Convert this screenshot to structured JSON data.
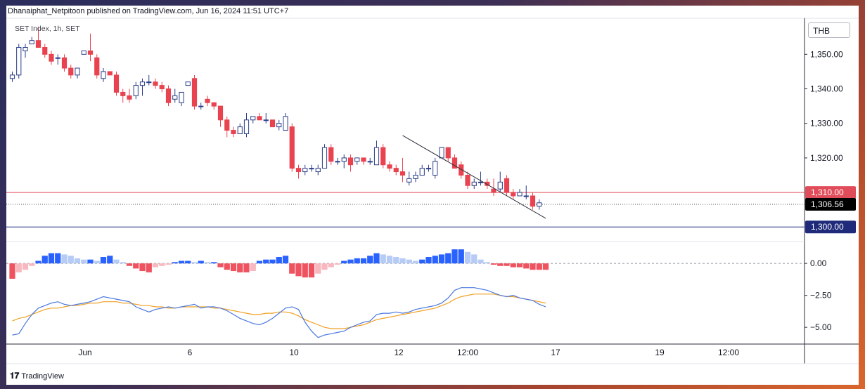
{
  "header": {
    "published_line": "Dhanaiphat_Netpitoon published on TradingView.com, Jun 16, 2024 11:51 UTC+7",
    "symbol_line": "SET Index, 1h, SET",
    "currency": "THB"
  },
  "footer": {
    "logo_glyph": "𝟏𝟕",
    "brand": "TradingView"
  },
  "colors": {
    "up": "#ffffff",
    "up_border": "#2a3d88",
    "down": "#e8434f",
    "down_border": "#e8434f",
    "line_red": "#e04c5a",
    "line_navy": "#1f2a7a",
    "macd": "#4a78e0",
    "signal": "#f0a024",
    "hist_up_strong": "#2962ff",
    "hist_up_weak": "#b6cbf5",
    "hist_down_strong": "#ef5360",
    "hist_down_weak": "#f7b9bf"
  },
  "chart_data": [
    {
      "type": "candlestick",
      "y_axis": {
        "ticks": [
          1350,
          1340,
          1330,
          1320
        ],
        "tick_labels": [
          "1,350.00",
          "1,340.00",
          "1,330.00",
          "1,320.00"
        ],
        "range": [
          1297,
          1358
        ]
      },
      "x_axis": {
        "ticks": [
          "Jun",
          "6",
          "10",
          "12",
          "12:00",
          "17",
          "19",
          "12:00"
        ]
      },
      "price_tags": [
        {
          "value": 1310.0,
          "label": "1,310.00",
          "color": "#e04c5a"
        },
        {
          "value": 1306.56,
          "label": "1,306.56",
          "color": "#000000"
        },
        {
          "value": 1300.0,
          "label": "1,300.00",
          "color": "#1f2a7a"
        }
      ],
      "horizontal_lines": [
        {
          "value": 1310.0,
          "style": "solid",
          "color": "#e04c5a"
        },
        {
          "value": 1306.56,
          "style": "dotted",
          "color": "#555555"
        },
        {
          "value": 1300.0,
          "style": "solid",
          "color": "#1f2a7a"
        }
      ],
      "trendline": {
        "from": {
          "bar": 60,
          "value": 1326.5
        },
        "to": {
          "bar": 82,
          "value": 1302.5
        }
      },
      "candles": [
        [
          1343,
          1345,
          1342,
          1344
        ],
        [
          1344,
          1353,
          1343,
          1352
        ],
        [
          1351,
          1353,
          1349,
          1352
        ],
        [
          1353,
          1355,
          1353,
          1354
        ],
        [
          1354,
          1358,
          1352,
          1352
        ],
        [
          1352,
          1353,
          1349,
          1350
        ],
        [
          1350,
          1351,
          1347,
          1348
        ],
        [
          1349,
          1350,
          1347,
          1349
        ],
        [
          1349,
          1350,
          1345,
          1346
        ],
        [
          1346,
          1347,
          1343,
          1344
        ],
        [
          1344,
          1346,
          1343,
          1346
        ],
        [
          1350,
          1351,
          1350,
          1351
        ],
        [
          1351,
          1356,
          1348,
          1350
        ],
        [
          1349,
          1350,
          1343,
          1344
        ],
        [
          1343,
          1346,
          1342,
          1345
        ],
        [
          1345,
          1345,
          1344,
          1344
        ],
        [
          1344,
          1345,
          1338,
          1339
        ],
        [
          1339,
          1340,
          1336,
          1338
        ],
        [
          1338,
          1340,
          1336,
          1337
        ],
        [
          1338,
          1342,
          1337,
          1341
        ],
        [
          1341,
          1343,
          1338,
          1342
        ],
        [
          1342,
          1344,
          1341,
          1342
        ],
        [
          1342,
          1343,
          1340,
          1341
        ],
        [
          1341,
          1342,
          1339,
          1340
        ],
        [
          1340,
          1341,
          1335,
          1336
        ],
        [
          1337,
          1340,
          1336,
          1338
        ],
        [
          1336,
          1339,
          1335,
          1339
        ],
        [
          1341,
          1342,
          1341,
          1342
        ],
        [
          1343,
          1344,
          1334,
          1335
        ],
        [
          1335,
          1336,
          1334,
          1335
        ],
        [
          1337,
          1338,
          1335,
          1336
        ],
        [
          1336,
          1336,
          1334,
          1335
        ],
        [
          1335,
          1335,
          1329,
          1331
        ],
        [
          1331,
          1332,
          1326,
          1328
        ],
        [
          1328,
          1329,
          1326,
          1327
        ],
        [
          1327,
          1330,
          1327,
          1329
        ],
        [
          1327,
          1333,
          1326,
          1331
        ],
        [
          1331,
          1332,
          1330,
          1332
        ],
        [
          1332,
          1333,
          1331,
          1331
        ],
        [
          1331,
          1333,
          1330,
          1331
        ],
        [
          1331,
          1331,
          1329,
          1329
        ],
        [
          1329,
          1331,
          1328,
          1330
        ],
        [
          1328,
          1333,
          1328,
          1332
        ],
        [
          1329,
          1330,
          1316,
          1317
        ],
        [
          1317,
          1318,
          1314,
          1316
        ],
        [
          1316,
          1318,
          1315,
          1317
        ],
        [
          1317,
          1318,
          1316,
          1317
        ],
        [
          1316,
          1318,
          1315,
          1317
        ],
        [
          1317,
          1324,
          1317,
          1323
        ],
        [
          1323,
          1324,
          1318,
          1319
        ],
        [
          1319,
          1320,
          1318,
          1319
        ],
        [
          1319,
          1321,
          1317,
          1320
        ],
        [
          1320,
          1321,
          1316,
          1318
        ],
        [
          1319,
          1320,
          1318,
          1320
        ],
        [
          1320,
          1320,
          1318,
          1319
        ],
        [
          1319,
          1320,
          1318,
          1319
        ],
        [
          1318,
          1325,
          1318,
          1323
        ],
        [
          1323,
          1324,
          1317,
          1318
        ],
        [
          1318,
          1319,
          1316,
          1317
        ],
        [
          1317,
          1318,
          1315,
          1316
        ],
        [
          1316,
          1320,
          1313,
          1315
        ],
        [
          1313,
          1316,
          1312,
          1314
        ],
        [
          1314,
          1316,
          1313,
          1315
        ],
        [
          1315,
          1318,
          1315,
          1317
        ],
        [
          1317,
          1318,
          1316,
          1317
        ],
        [
          1315,
          1320,
          1314,
          1319
        ],
        [
          1320,
          1323,
          1320,
          1323
        ],
        [
          1323,
          1323,
          1319,
          1320
        ],
        [
          1320,
          1321,
          1317,
          1317
        ],
        [
          1318,
          1319,
          1314,
          1315
        ],
        [
          1315,
          1316,
          1311,
          1312
        ],
        [
          1312,
          1314,
          1311,
          1313
        ],
        [
          1313,
          1316,
          1312,
          1313
        ],
        [
          1313,
          1314,
          1311,
          1312
        ],
        [
          1311,
          1314,
          1309,
          1310
        ],
        [
          1311,
          1316,
          1310,
          1313
        ],
        [
          1314,
          1315,
          1309,
          1310
        ],
        [
          1310,
          1311,
          1308,
          1309
        ],
        [
          1309,
          1311,
          1309,
          1310
        ],
        [
          1309,
          1312,
          1308,
          1309
        ],
        [
          1309,
          1310,
          1305,
          1306
        ],
        [
          1306,
          1308,
          1305,
          1307
        ]
      ]
    },
    {
      "type": "macd",
      "y_axis": {
        "ticks": [
          0,
          -2.5,
          -5
        ],
        "tick_labels": [
          "0.00",
          "−2.50",
          "−5.00"
        ],
        "range": [
          -6.2,
          1.6
        ]
      },
      "zero_line": "dashed",
      "histogram": [
        -1.2,
        -0.7,
        -0.5,
        -0.2,
        0.2,
        0.6,
        0.8,
        0.8,
        0.7,
        0.6,
        0.4,
        0.3,
        0.3,
        0.2,
        0.5,
        0.6,
        0.3,
        0.1,
        -0.2,
        -0.4,
        -0.6,
        -0.7,
        -0.3,
        -0.2,
        -0.1,
        0.1,
        0.2,
        0.2,
        0.1,
        0.2,
        0.1,
        0.1,
        -0.3,
        -0.5,
        -0.6,
        -0.7,
        -0.7,
        -0.6,
        0.2,
        0.3,
        0.3,
        0.5,
        0.6,
        -0.8,
        -1.0,
        -1.1,
        -1.1,
        -0.8,
        -0.5,
        -0.3,
        -0.1,
        0.2,
        0.3,
        0.4,
        0.4,
        0.6,
        0.8,
        0.7,
        0.6,
        0.5,
        0.4,
        0.3,
        0.2,
        0.3,
        0.5,
        0.6,
        0.7,
        0.8,
        1.1,
        1.1,
        0.9,
        0.7,
        0.3,
        0.1,
        -0.1,
        -0.2,
        -0.2,
        -0.3,
        -0.3,
        -0.4,
        -0.5,
        -0.5,
        -0.5
      ],
      "macd_line": [
        -5.6,
        -5.5,
        -4.7,
        -4.0,
        -3.5,
        -3.3,
        -3.1,
        -3.0,
        -3.2,
        -3.3,
        -3.2,
        -3.1,
        -3.0,
        -2.8,
        -2.6,
        -2.7,
        -2.8,
        -2.9,
        -3.0,
        -3.4,
        -3.6,
        -3.8,
        -3.6,
        -3.5,
        -3.4,
        -3.5,
        -3.4,
        -3.3,
        -3.2,
        -3.5,
        -3.4,
        -3.4,
        -3.5,
        -3.7,
        -4.0,
        -4.3,
        -4.5,
        -4.7,
        -4.8,
        -4.6,
        -4.3,
        -3.9,
        -3.5,
        -3.4,
        -3.6,
        -4.6,
        -5.3,
        -5.8,
        -5.6,
        -5.5,
        -5.4,
        -5.3,
        -5.0,
        -4.8,
        -4.6,
        -4.5,
        -4.0,
        -3.9,
        -3.9,
        -3.8,
        -3.9,
        -3.8,
        -3.6,
        -3.5,
        -3.4,
        -3.3,
        -3.1,
        -2.7,
        -2.1,
        -1.9,
        -1.9,
        -1.9,
        -2.0,
        -2.1,
        -2.3,
        -2.5,
        -2.6,
        -2.5,
        -2.7,
        -2.8,
        -2.9,
        -3.2,
        -3.4
      ],
      "signal_line": [
        -4.5,
        -4.3,
        -4.2,
        -4.0,
        -3.8,
        -3.6,
        -3.5,
        -3.5,
        -3.4,
        -3.3,
        -3.3,
        -3.2,
        -3.1,
        -3.1,
        -3.0,
        -3.0,
        -3.0,
        -3.1,
        -3.1,
        -3.2,
        -3.3,
        -3.3,
        -3.4,
        -3.4,
        -3.5,
        -3.5,
        -3.4,
        -3.4,
        -3.4,
        -3.4,
        -3.4,
        -3.5,
        -3.5,
        -3.6,
        -3.7,
        -3.8,
        -3.9,
        -4.0,
        -4.0,
        -3.9,
        -3.9,
        -3.8,
        -3.8,
        -3.9,
        -4.1,
        -4.4,
        -4.6,
        -4.8,
        -5.0,
        -5.1,
        -5.1,
        -5.1,
        -5.0,
        -4.9,
        -4.8,
        -4.6,
        -4.4,
        -4.3,
        -4.2,
        -4.1,
        -4.0,
        -3.9,
        -3.8,
        -3.7,
        -3.6,
        -3.5,
        -3.3,
        -3.1,
        -2.8,
        -2.6,
        -2.5,
        -2.4,
        -2.4,
        -2.4,
        -2.4,
        -2.5,
        -2.6,
        -2.6,
        -2.7,
        -2.8,
        -2.9,
        -3.0,
        -3.1
      ]
    }
  ]
}
